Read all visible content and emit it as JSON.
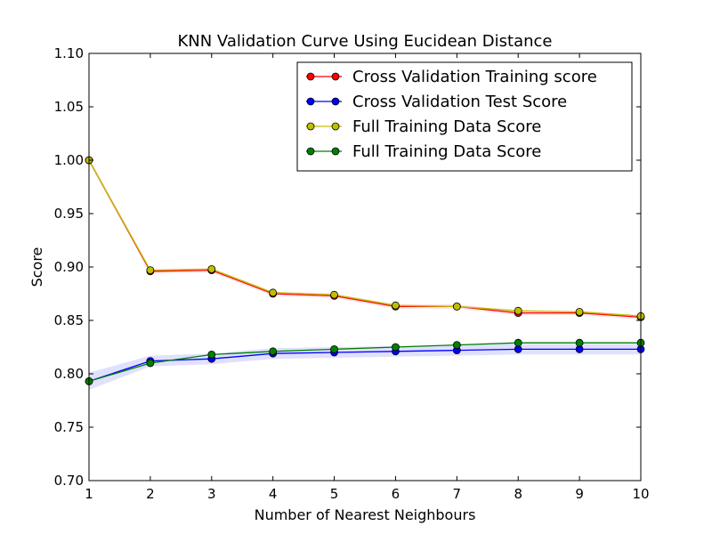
{
  "chart_data": {
    "type": "line",
    "title": "KNN Validation Curve Using Eucidean Distance",
    "xlabel": "Number of Nearest Neighbours",
    "ylabel": "Score",
    "xlim": [
      1,
      10
    ],
    "ylim": [
      0.7,
      1.1
    ],
    "x": [
      1,
      2,
      3,
      4,
      5,
      6,
      7,
      8,
      9,
      10
    ],
    "x_ticks": [
      1,
      2,
      3,
      4,
      5,
      6,
      7,
      8,
      9,
      10
    ],
    "y_ticks": [
      0.7,
      0.75,
      0.8,
      0.85,
      0.9,
      0.95,
      1.0,
      1.05,
      1.1
    ],
    "y_tick_labels": [
      "0.70",
      "0.75",
      "0.80",
      "0.85",
      "0.90",
      "0.95",
      "1.00",
      "1.05",
      "1.10"
    ],
    "grid": false,
    "legend_position": "top-right",
    "series": [
      {
        "name": "Cross Validation Training score",
        "color": "#ff0000",
        "marker_color": "#ff0000",
        "values": [
          1.0,
          0.896,
          0.897,
          0.875,
          0.873,
          0.863,
          0.863,
          0.857,
          0.857,
          0.853
        ],
        "band": [
          0.002,
          0.002,
          0.002,
          0.002,
          0.002,
          0.002,
          0.002,
          0.002,
          0.002,
          0.002
        ],
        "band_color": "#ff0000"
      },
      {
        "name": "Cross Validation Test Score",
        "color": "#0000ff",
        "marker_color": "#0000ff",
        "values": [
          0.793,
          0.812,
          0.814,
          0.819,
          0.82,
          0.821,
          0.822,
          0.823,
          0.823,
          0.823
        ],
        "band": [
          0.008,
          0.005,
          0.005,
          0.005,
          0.005,
          0.005,
          0.005,
          0.005,
          0.005,
          0.005
        ],
        "band_color": "#0000ff"
      },
      {
        "name": "Full Training Data Score",
        "color": "#bfbf00",
        "marker_color": "#bfbf00",
        "values": [
          1.0,
          0.897,
          0.898,
          0.876,
          0.874,
          0.864,
          0.863,
          0.859,
          0.858,
          0.854
        ],
        "band": null
      },
      {
        "name": "Full Training Data Score",
        "color": "#008000",
        "marker_color": "#008000",
        "values": [
          0.793,
          0.81,
          0.818,
          0.821,
          0.823,
          0.825,
          0.827,
          0.829,
          0.829,
          0.829
        ],
        "band": null
      }
    ]
  }
}
